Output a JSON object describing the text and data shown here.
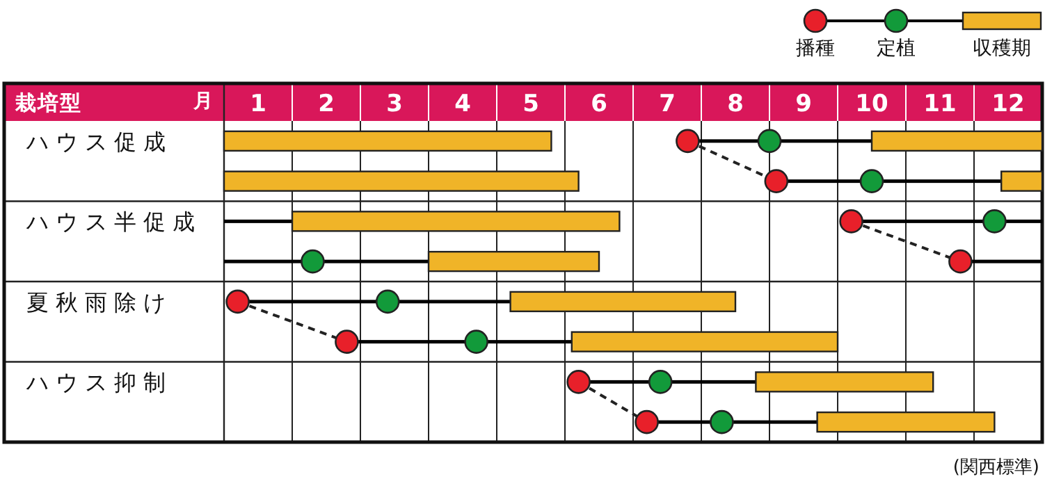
{
  "chart_data": {
    "type": "bar",
    "orientation": "horizontal",
    "xlabel": "月",
    "ylabel": "栽培型",
    "categories": [
      "ハウス促成",
      null,
      "ハウス半促成",
      null,
      "夏秋雨除け",
      null,
      "ハウス抑制",
      null
    ],
    "xlim": [
      0.5,
      12.5
    ],
    "xticks": [
      1,
      2,
      3,
      4,
      5,
      6,
      7,
      8,
      9,
      10,
      11,
      12
    ],
    "grid": true,
    "legend": "top right",
    "annotations": [
      "(関西標準)"
    ],
    "series": [
      {
        "type": "line",
        "line_style": "dashed",
        "color": "#222222",
        "values": [
          7.3,
          8.6,
          null,
          null,
          null,
          null,
          null,
          null
        ]
      },
      {
        "type": "line",
        "line_style": "dashed",
        "color": "#222222",
        "values": [
          null,
          null,
          9.7,
          11.3,
          null,
          null,
          null,
          null
        ]
      },
      {
        "type": "line",
        "line_style": "dashed",
        "color": "#222222",
        "values": [
          null,
          null,
          null,
          null,
          0.7,
          2.3,
          null,
          null
        ]
      },
      {
        "type": "line",
        "line_style": "dashed",
        "color": "#222222",
        "values": [
          null,
          null,
          null,
          null,
          null,
          null,
          5.7,
          6.7
        ]
      },
      {
        "name": "播種",
        "type": "scatter",
        "color": "#e8202a",
        "values": [
          7.3,
          8.6,
          9.7,
          11.3,
          0.7,
          2.3,
          5.7,
          6.7
        ]
      },
      {
        "name": "定植",
        "type": "scatter",
        "color": "#129a3a",
        "values": [
          8.5,
          10.0,
          11.8,
          1.8,
          2.9,
          4.2,
          6.9,
          7.8
        ]
      },
      {
        "name": "収穫期",
        "type": "bar",
        "color": "#f0b428",
        "base": [
          10.0,
          11.9,
          1.5,
          3.5,
          4.7,
          5.6,
          8.3,
          9.2
        ],
        "values": [
          2.5,
          0.6,
          4.8,
          2.5,
          3.3,
          3.9,
          2.6,
          2.6
        ]
      },
      {
        "type": "bar",
        "color": "#f0b428",
        "base": [
          0.5,
          0.5,
          null,
          null,
          null,
          null,
          null,
          null
        ],
        "values": [
          4.8,
          5.2,
          null,
          null,
          null,
          null,
          null,
          null
        ]
      },
      {
        "type": "bar",
        "line_style": "solid",
        "color": "#000000",
        "base": [
          7.3,
          8.6,
          9.7,
          11.3,
          0.7,
          2.3,
          5.7,
          6.7
        ],
        "values": [
          2.7,
          3.3,
          2.8,
          1.2,
          4.0,
          3.3,
          2.6,
          2.5
        ]
      },
      {
        "type": "bar",
        "line_style": "solid",
        "color": "#000000",
        "base": [
          null,
          null,
          0.5,
          0.5,
          null,
          null,
          null,
          null
        ],
        "values": [
          null,
          null,
          1.0,
          3.0,
          null,
          null,
          null,
          null
        ]
      }
    ]
  }
}
